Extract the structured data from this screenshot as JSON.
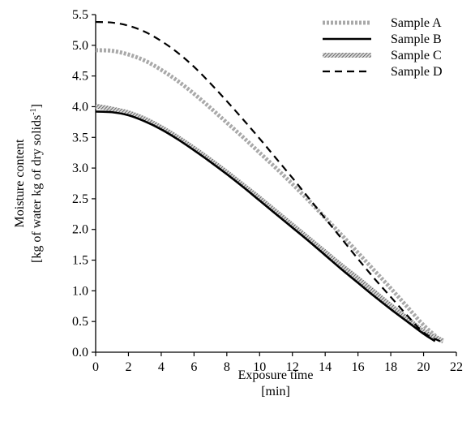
{
  "chart_data": {
    "type": "line",
    "xlabel": [
      "Exposure time",
      "[min]"
    ],
    "ylabel": [
      "Moisture content",
      "[kg of water kg of dry solids",
      "-1",
      "]"
    ],
    "xlim": [
      0,
      22
    ],
    "ylim": [
      0,
      5.5
    ],
    "xticks": [
      "0",
      "2",
      "4",
      "6",
      "8",
      "10",
      "12",
      "14",
      "16",
      "18",
      "20",
      "22"
    ],
    "yticks": [
      "0.0",
      "0.5",
      "1.0",
      "1.5",
      "2.0",
      "2.5",
      "3.0",
      "3.5",
      "4.0",
      "4.5",
      "5.0",
      "5.5"
    ],
    "legend_position": "top-right",
    "grid": false,
    "series": [
      {
        "name": "Sample A",
        "style": "thick-gray-dotted",
        "x": [
          0,
          1,
          2,
          3,
          4,
          5,
          6,
          7,
          8,
          9,
          10,
          11,
          12,
          13,
          14,
          15,
          16,
          17,
          18,
          19,
          20,
          21
        ],
        "y": [
          4.92,
          4.91,
          4.85,
          4.75,
          4.6,
          4.42,
          4.21,
          3.98,
          3.74,
          3.5,
          3.25,
          3.0,
          2.74,
          2.47,
          2.19,
          1.91,
          1.62,
          1.33,
          1.04,
          0.74,
          0.44,
          0.2
        ]
      },
      {
        "name": "Sample B",
        "style": "solid-black",
        "x": [
          0,
          1,
          2,
          3,
          4,
          5,
          6,
          7,
          8,
          9,
          10,
          11,
          12,
          13,
          14,
          15,
          16,
          17,
          18,
          19,
          20,
          20.7
        ],
        "y": [
          3.92,
          3.91,
          3.86,
          3.76,
          3.63,
          3.47,
          3.29,
          3.1,
          2.9,
          2.69,
          2.47,
          2.25,
          2.03,
          1.81,
          1.58,
          1.35,
          1.13,
          0.91,
          0.7,
          0.5,
          0.3,
          0.18
        ]
      },
      {
        "name": "Sample C",
        "style": "hatched-gray",
        "x": [
          0,
          1,
          2,
          3,
          4,
          5,
          6,
          7,
          8,
          9,
          10,
          11,
          12,
          13,
          14,
          15,
          16,
          17,
          18,
          19,
          20,
          21.2
        ],
        "y": [
          4.01,
          3.96,
          3.9,
          3.8,
          3.66,
          3.5,
          3.32,
          3.13,
          2.93,
          2.72,
          2.51,
          2.29,
          2.07,
          1.85,
          1.63,
          1.41,
          1.2,
          0.98,
          0.76,
          0.55,
          0.34,
          0.18
        ]
      },
      {
        "name": "Sample D",
        "style": "dashed-black",
        "x": [
          0,
          1,
          2,
          3,
          4,
          5,
          6,
          7,
          8,
          9,
          10,
          11,
          12,
          13,
          14,
          15,
          16,
          17,
          18,
          19,
          20,
          21
        ],
        "y": [
          5.38,
          5.37,
          5.32,
          5.22,
          5.07,
          4.88,
          4.65,
          4.38,
          4.09,
          3.79,
          3.48,
          3.16,
          2.84,
          2.51,
          2.18,
          1.85,
          1.52,
          1.2,
          0.9,
          0.6,
          0.32,
          0.18
        ]
      }
    ]
  }
}
